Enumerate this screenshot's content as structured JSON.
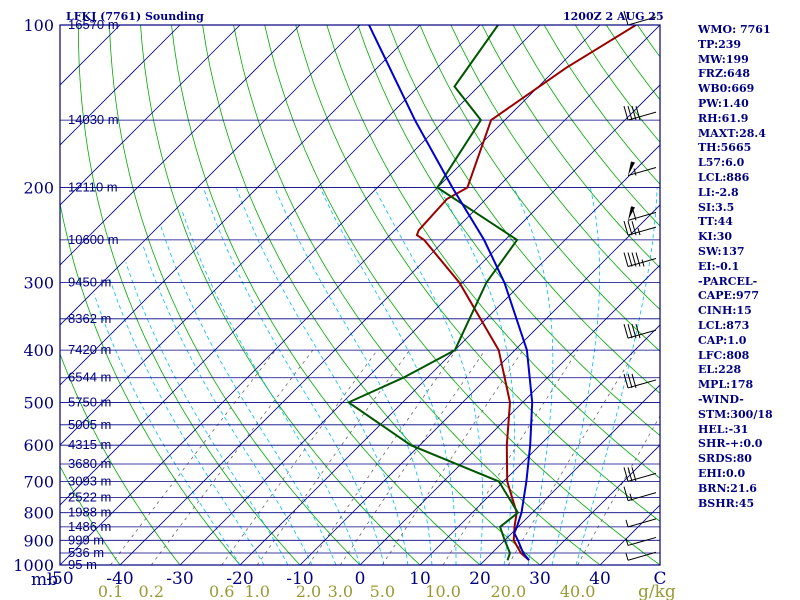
{
  "header": {
    "title": "LFKJ (7761) Sounding",
    "time": "1200Z  2 AUG 25"
  },
  "colors": {
    "frame": "#000080",
    "isobar": "#000080",
    "isotherm": "#000080",
    "dry_adiabat": "#00aa00",
    "moist_adiabat": "#00bbff",
    "mixing_ratio": "#555555",
    "temperature": "#990000",
    "dewpoint": "#005500",
    "parcel": "#0000cc",
    "text": "#000080",
    "mixing_text": "#999933",
    "wind_barb": "#000000"
  },
  "chart_data": {
    "type": "skew-t log-p",
    "title": "LFKJ (7761) Sounding",
    "xlabel": "C",
    "ylabel": "mb",
    "xlim": [
      -50,
      50
    ],
    "ylim": [
      1000,
      100
    ],
    "temperature_ticks": [
      -50,
      -40,
      -30,
      -20,
      -10,
      0,
      10,
      20,
      30,
      40,
      50
    ],
    "temperature_tick_labels": [
      "-50",
      "-40",
      "-30",
      "-20",
      "-10",
      "0",
      "10",
      "20",
      "30",
      "40",
      "C"
    ],
    "mixing_ratio_ticks": [
      0.1,
      0.2,
      0.6,
      1.0,
      2.0,
      3.0,
      5.0,
      10.0,
      20.0,
      40.0
    ],
    "mixing_ratio_tick_labels": [
      "0.1",
      "0.2",
      "0.6",
      "1.0",
      "2.0",
      "3.0",
      "5.0",
      "10.0",
      "20.0",
      "40.0"
    ],
    "mixing_ratio_unit": "g/kg",
    "pressure_ticks": [
      100,
      200,
      300,
      400,
      500,
      600,
      700,
      800,
      900,
      1000
    ],
    "pressure_tick_labels": [
      "100",
      "200",
      "300",
      "400",
      "500",
      "600",
      "700",
      "800",
      "900",
      "1000"
    ],
    "height_labels": [
      {
        "p": 100,
        "label": "16570 m"
      },
      {
        "p": 150,
        "label": "14030 m"
      },
      {
        "p": 200,
        "label": "12110 m"
      },
      {
        "p": 250,
        "label": "10600 m"
      },
      {
        "p": 300,
        "label": "9450 m"
      },
      {
        "p": 350,
        "label": "8362 m"
      },
      {
        "p": 400,
        "label": "7420 m"
      },
      {
        "p": 450,
        "label": "6544 m"
      },
      {
        "p": 500,
        "label": "5750 m"
      },
      {
        "p": 550,
        "label": "5005 m"
      },
      {
        "p": 600,
        "label": "4315 m"
      },
      {
        "p": 650,
        "label": "3680 m"
      },
      {
        "p": 700,
        "label": "3093 m"
      },
      {
        "p": 750,
        "label": "2522 m"
      },
      {
        "p": 800,
        "label": "1988 m"
      },
      {
        "p": 850,
        "label": "1486 m"
      },
      {
        "p": 900,
        "label": "999 m"
      },
      {
        "p": 950,
        "label": "536 m"
      },
      {
        "p": 1000,
        "label": "95 m"
      }
    ],
    "series": [
      {
        "key": "temperature",
        "p": [
          980,
          950,
          900,
          850,
          800,
          700,
          600,
          500,
          400,
          300,
          250,
          245,
          240,
          210,
          200,
          150,
          120,
          100
        ],
        "t": [
          27.4,
          24.8,
          21.5,
          19.4,
          17.4,
          10.6,
          4.5,
          -2.1,
          -12.7,
          -30.5,
          -43.5,
          -45.5,
          -46,
          -46.5,
          -45,
          -52.3,
          -48.5,
          -44
        ]
      },
      {
        "key": "dewpoint",
        "p": [
          980,
          950,
          900,
          850,
          800,
          700,
          600,
          500,
          450,
          400,
          300,
          250,
          200,
          150,
          130,
          100
        ],
        "t": [
          23.8,
          23,
          20,
          17,
          17.6,
          9.2,
          -11.5,
          -29,
          -24,
          -20,
          -26,
          -28,
          -50,
          -54,
          -64,
          -67
        ]
      },
      {
        "key": "parcel",
        "p": [
          980,
          950,
          900,
          873,
          850,
          800,
          700,
          600,
          500,
          400,
          300,
          250,
          200,
          150,
          100
        ],
        "t": [
          27.4,
          25.2,
          22.2,
          20.4,
          19.8,
          18.2,
          13.8,
          8.4,
          1.6,
          -8.0,
          -23.0,
          -33.5,
          -47.5,
          -65.0,
          -88.5
        ]
      }
    ],
    "wind_barbs": [
      {
        "p": 100,
        "speed": 10
      },
      {
        "p": 150,
        "speed": 40
      },
      {
        "p": 190,
        "speed": 55
      },
      {
        "p": 230,
        "speed": 60
      },
      {
        "p": 245,
        "speed": 35
      },
      {
        "p": 280,
        "speed": 45
      },
      {
        "p": 380,
        "speed": 40
      },
      {
        "p": 470,
        "speed": 30
      },
      {
        "p": 700,
        "speed": 30
      },
      {
        "p": 760,
        "speed": 15
      },
      {
        "p": 850,
        "speed": 5
      },
      {
        "p": 920,
        "speed": 5
      },
      {
        "p": 980,
        "speed": 5
      }
    ]
  },
  "stats": {
    "items": [
      "WMO: 7761",
      "TP:239",
      "MW:199",
      "FRZ:648",
      "WB0:669",
      "PW:1.40",
      "RH:61.9",
      "MAXT:28.4",
      "TH:5665",
      "L57:6.0",
      "LCL:886",
      "LI:-2.8",
      "SI:3.5",
      "TT:44",
      "KI:30",
      "SW:137",
      "EI:-0.1",
      "-PARCEL-",
      "CAPE:977",
      "CINH:15",
      "LCL:873",
      "CAP:1.0",
      "LFC:808",
      "EL:228",
      "MPL:178",
      "-WIND-",
      "STM:300/18",
      "HEL:-31",
      "SHR-+:0.0",
      "SRDS:80",
      "EHI:0.0",
      "BRN:21.6",
      "BSHR:45"
    ]
  }
}
